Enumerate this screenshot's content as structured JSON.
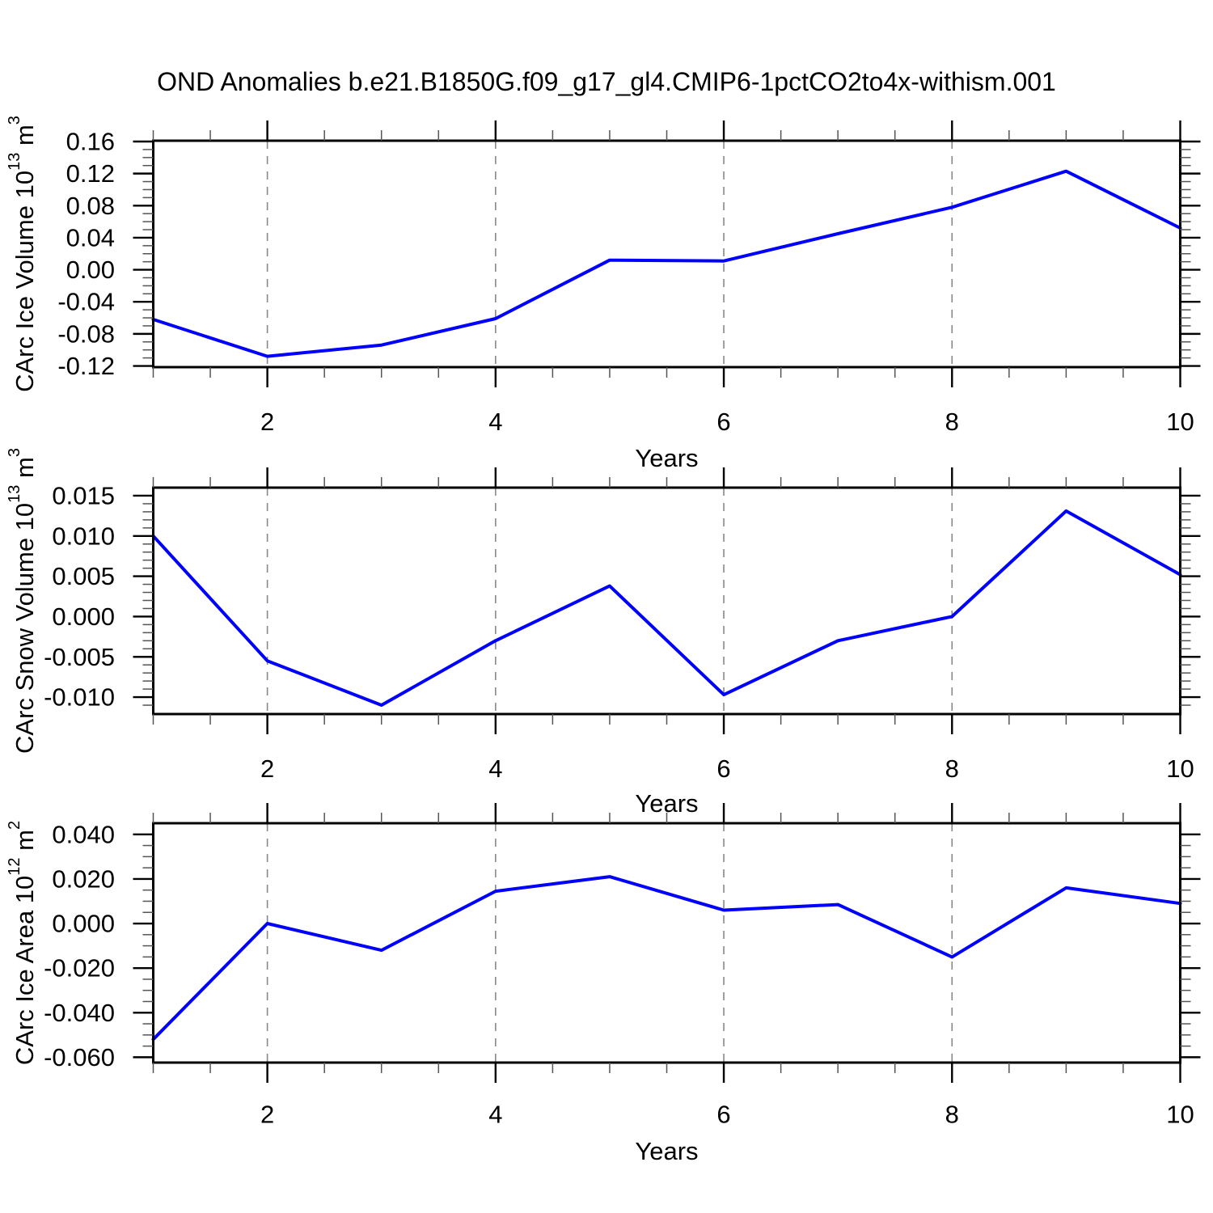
{
  "page": {
    "title": "OND Anomalies b.e21.B1850G.f09_g17_gl4.CMIP6-1pctCO2to4x-withism.001",
    "background": "#ffffff"
  },
  "style": {
    "line_color": "#0000ff",
    "axis_color": "#000000",
    "grid_color": "#888888",
    "minor_tick_color": "#555555",
    "text_color": "#000000"
  },
  "chart_data": [
    {
      "id": "ice-volume",
      "type": "line",
      "ylabel_parts": [
        {
          "t": "CArc Ice Volume 10"
        },
        {
          "t": "13",
          "sup": true
        },
        {
          "t": " m"
        },
        {
          "t": "3",
          "sup": true
        }
      ],
      "xlabel": "Years",
      "x": [
        1,
        2,
        3,
        4,
        5,
        6,
        7,
        8,
        9,
        10
      ],
      "values": [
        -0.062,
        -0.108,
        -0.094,
        -0.061,
        0.012,
        0.011,
        0.045,
        0.078,
        0.123,
        0.052
      ],
      "xlim": [
        1,
        10
      ],
      "ylim": [
        -0.1215,
        0.161
      ],
      "x_major_ticks": [
        2,
        4,
        6,
        8,
        10
      ],
      "x_tick_labels": [
        "2",
        "4",
        "6",
        "8",
        "10"
      ],
      "x_minor_step": 0.5,
      "y_major_ticks": [
        {
          "v": 0.16,
          "label": "0.16"
        },
        {
          "v": 0.12,
          "label": "0.12"
        },
        {
          "v": 0.08,
          "label": "0.08"
        },
        {
          "v": 0.04,
          "label": "0.04"
        },
        {
          "v": 0.0,
          "label": "0.00"
        },
        {
          "v": -0.04,
          "label": "-0.04"
        },
        {
          "v": -0.08,
          "label": "-0.08"
        },
        {
          "v": -0.12,
          "label": "-0.12"
        }
      ],
      "y_minor_step": 0.01,
      "grid_x": [
        2,
        4,
        6,
        8
      ],
      "grid_style": "vertical-dashed"
    },
    {
      "id": "snow-volume",
      "type": "line",
      "ylabel_parts": [
        {
          "t": "CArc Snow Volume 10"
        },
        {
          "t": "13",
          "sup": true
        },
        {
          "t": " m"
        },
        {
          "t": "3",
          "sup": true
        }
      ],
      "xlabel": "Years",
      "x": [
        1,
        2,
        3,
        4,
        5,
        6,
        7,
        8,
        9,
        10
      ],
      "values": [
        0.01,
        -0.0055,
        -0.011,
        -0.003,
        0.0038,
        -0.0097,
        -0.003,
        0.0,
        0.0131,
        0.0052
      ],
      "xlim": [
        1,
        10
      ],
      "ylim": [
        -0.0121,
        0.016
      ],
      "x_major_ticks": [
        2,
        4,
        6,
        8,
        10
      ],
      "x_tick_labels": [
        "2",
        "4",
        "6",
        "8",
        "10"
      ],
      "x_minor_step": 0.5,
      "y_major_ticks": [
        {
          "v": 0.015,
          "label": "0.015"
        },
        {
          "v": 0.01,
          "label": "0.010"
        },
        {
          "v": 0.005,
          "label": "0.005"
        },
        {
          "v": 0.0,
          "label": "0.000"
        },
        {
          "v": -0.005,
          "label": "-0.005"
        },
        {
          "v": -0.01,
          "label": "-0.010"
        }
      ],
      "y_minor_step": 0.001,
      "grid_x": [
        2,
        4,
        6,
        8
      ],
      "grid_style": "vertical-dashed"
    },
    {
      "id": "ice-area",
      "type": "line",
      "ylabel_parts": [
        {
          "t": "CArc Ice Area 10"
        },
        {
          "t": "12",
          "sup": true
        },
        {
          "t": " m"
        },
        {
          "t": "2",
          "sup": true
        }
      ],
      "xlabel": "Years",
      "x": [
        1,
        2,
        3,
        4,
        5,
        6,
        7,
        8,
        9,
        10
      ],
      "values": [
        -0.052,
        0.0,
        -0.012,
        0.0145,
        0.021,
        0.006,
        0.0085,
        -0.015,
        0.016,
        0.009
      ],
      "xlim": [
        1,
        10
      ],
      "ylim": [
        -0.0624,
        0.045
      ],
      "x_major_ticks": [
        2,
        4,
        6,
        8,
        10
      ],
      "x_tick_labels": [
        "2",
        "4",
        "6",
        "8",
        "10"
      ],
      "x_minor_step": 0.5,
      "y_major_ticks": [
        {
          "v": 0.04,
          "label": "0.040"
        },
        {
          "v": 0.02,
          "label": "0.020"
        },
        {
          "v": 0.0,
          "label": "0.000"
        },
        {
          "v": -0.02,
          "label": "-0.020"
        },
        {
          "v": -0.04,
          "label": "-0.040"
        },
        {
          "v": -0.06,
          "label": "-0.060"
        }
      ],
      "y_minor_step": 0.005,
      "grid_x": [
        2,
        4,
        6,
        8
      ],
      "grid_style": "vertical-dashed"
    }
  ]
}
